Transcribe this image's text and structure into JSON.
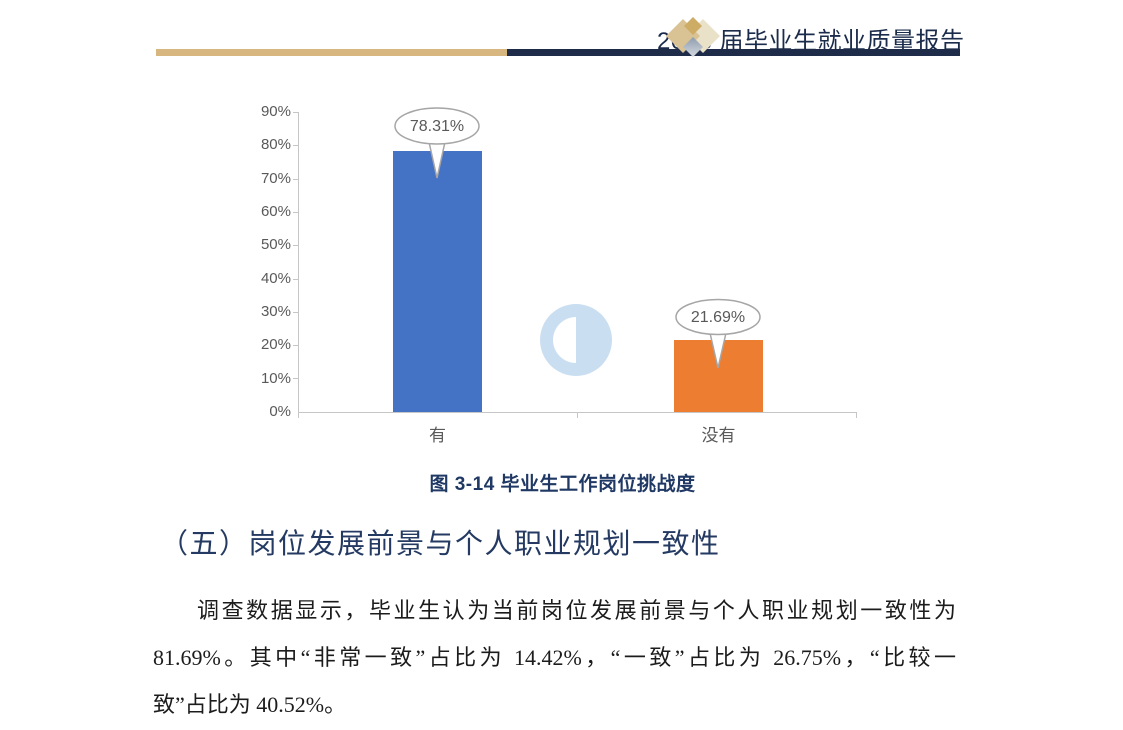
{
  "header": {
    "title": "2023 届毕业生就业质量报告",
    "rule_gold_color": "#d7b77f",
    "rule_navy_color": "#1e2c4a"
  },
  "chart_data": {
    "type": "bar",
    "title": "",
    "categories": [
      "有",
      "没有"
    ],
    "values": [
      78.31,
      21.69
    ],
    "labels": [
      "78.31%",
      "21.69%"
    ],
    "bar_colors": [
      "#4472C4",
      "#ED7D31"
    ],
    "yticks": [
      "0%",
      "10%",
      "20%",
      "30%",
      "40%",
      "50%",
      "60%",
      "70%",
      "80%",
      "90%"
    ],
    "ylim": [
      0,
      90
    ],
    "grid": false,
    "legend": "none",
    "axis_color": "#c6c6c6",
    "tick_label_color": "#595959",
    "callout_border_color": "#a6a6a6",
    "watermark_color": "#c9def1"
  },
  "caption": {
    "text": "图 3-14 毕业生工作岗位挑战度"
  },
  "section": {
    "heading": "（五）岗位发展前景与个人职业规划一致性"
  },
  "body": {
    "line1": "调查数据显示，毕业生认为当前岗位发展前景与个人职业规划一致性为",
    "line2": "81.69%。其中“非常一致”占比为 14.42%，“一致”占比为 26.75%，“比较一",
    "line3": "致”占比为 40.52%。"
  },
  "colors": {
    "navy_text": "#1f3864",
    "heading_text": "#243a62",
    "body_text": "#1c1c1c"
  }
}
